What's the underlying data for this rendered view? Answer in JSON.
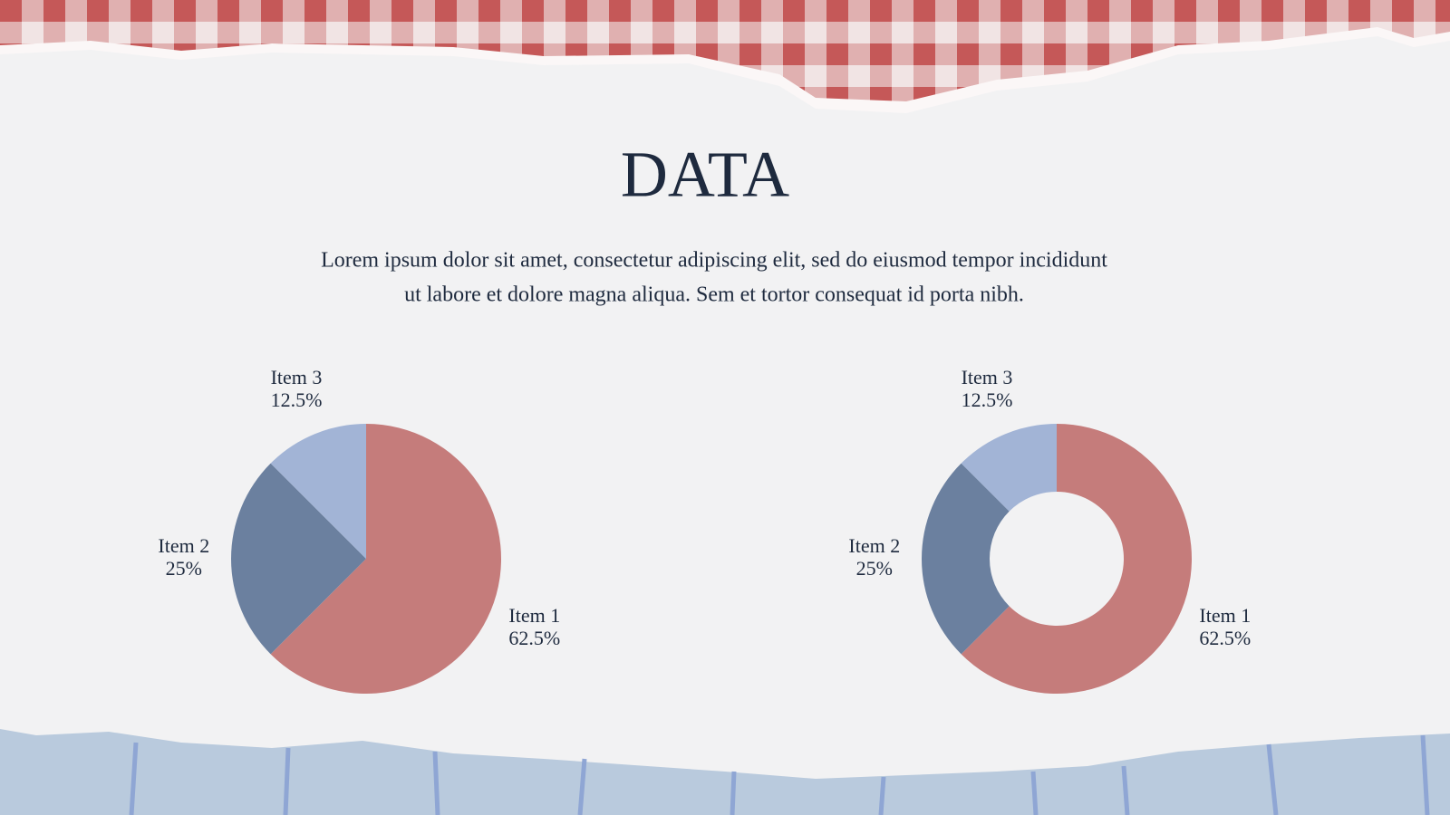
{
  "title": "DATA",
  "body": [
    "Lorem ipsum dolor sit amet, consectetur adipiscing elit, sed do eiusmod tempor incididunt",
    "ut labore et dolore magna aliqua. Sem et tortor consequat id porta nibh."
  ],
  "chart_data": [
    {
      "type": "pie",
      "categories": [
        "Item 1",
        "Item 2",
        "Item 3"
      ],
      "values": [
        62.5,
        25,
        12.5
      ],
      "value_labels": [
        "62.5%",
        "25%",
        "12.5%"
      ],
      "colors": [
        "#c57c7b",
        "#6b809f",
        "#a2b4d6"
      ]
    },
    {
      "type": "donut",
      "categories": [
        "Item 1",
        "Item 2",
        "Item 3"
      ],
      "values": [
        62.5,
        25,
        12.5
      ],
      "value_labels": [
        "62.5%",
        "25%",
        "12.5%"
      ],
      "colors": [
        "#c57c7b",
        "#6b809f",
        "#a2b4d6"
      ]
    }
  ]
}
